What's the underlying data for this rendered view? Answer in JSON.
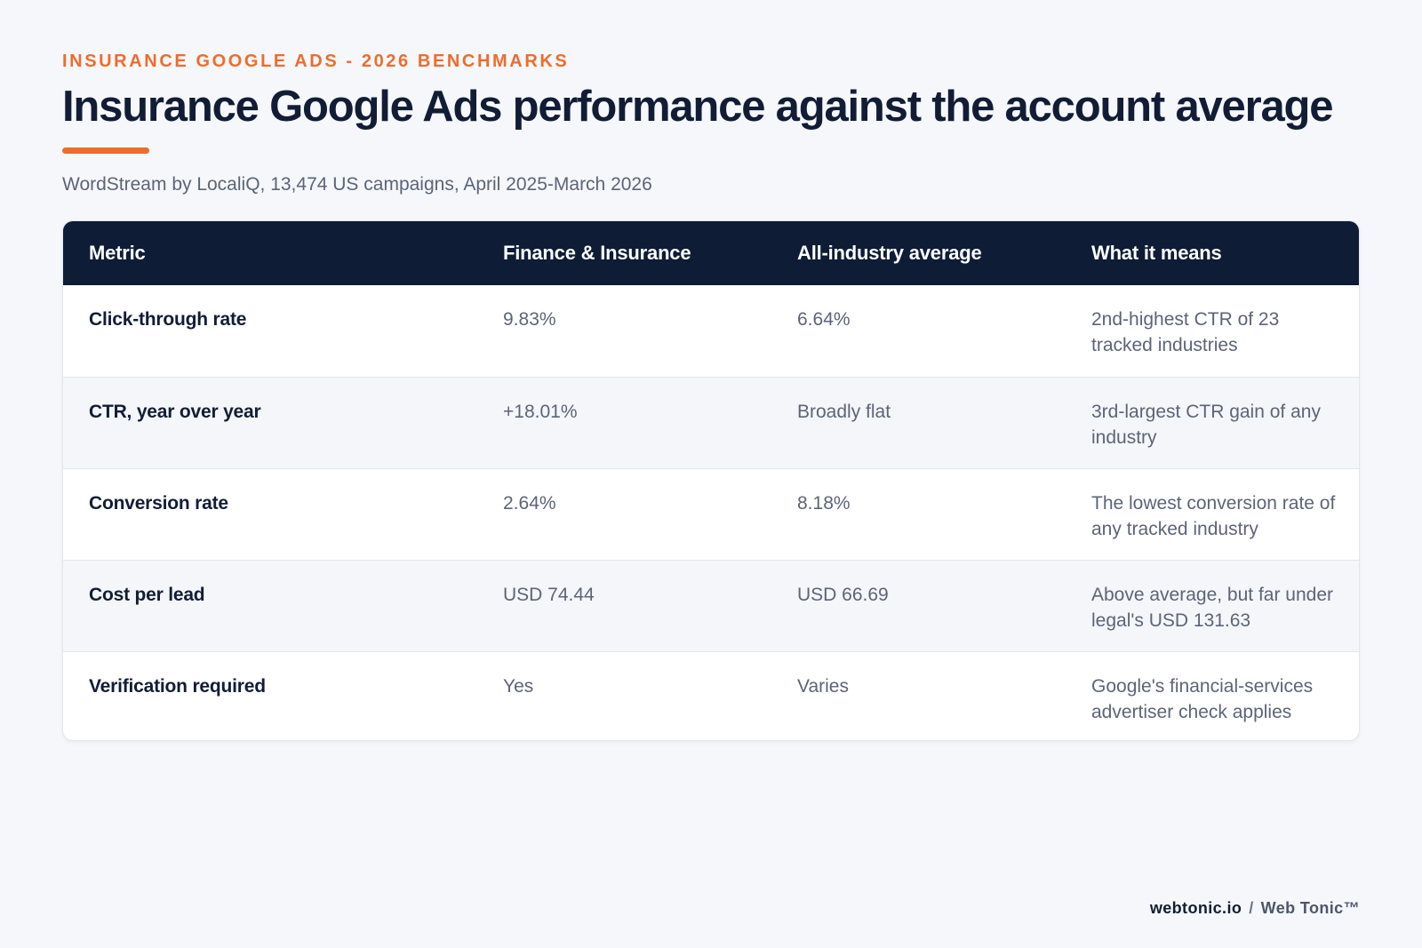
{
  "header": {
    "eyebrow": "INSURANCE GOOGLE ADS - 2026 BENCHMARKS",
    "title": "Insurance Google Ads performance against the account average",
    "subtitle": "WordStream by LocaliQ, 13,474 US campaigns, April 2025-March 2026"
  },
  "table": {
    "columns": [
      "Metric",
      "Finance & Insurance",
      "All-industry average",
      "What it means"
    ],
    "rows": [
      {
        "metric": "Click-through rate",
        "finance": "9.83%",
        "average": "6.64%",
        "meaning": "2nd-highest CTR of 23 tracked industries"
      },
      {
        "metric": "CTR, year over year",
        "finance": "+18.01%",
        "average": "Broadly flat",
        "meaning": "3rd-largest CTR gain of any industry"
      },
      {
        "metric": "Conversion rate",
        "finance": "2.64%",
        "average": "8.18%",
        "meaning": "The lowest conversion rate of any tracked industry"
      },
      {
        "metric": "Cost per lead",
        "finance": "USD 74.44",
        "average": "USD 66.69",
        "meaning": "Above average, but far under legal's USD 131.63"
      },
      {
        "metric": "Verification required",
        "finance": "Yes",
        "average": "Varies",
        "meaning": "Google's financial-services advertiser check applies"
      }
    ]
  },
  "footer": {
    "site": "webtonic.io",
    "separator": "/",
    "brand": "Web Tonic™"
  },
  "colors": {
    "accent": "#ee6c2d",
    "header_bg": "#0e1c36",
    "page_bg": "#f5f7fa"
  }
}
